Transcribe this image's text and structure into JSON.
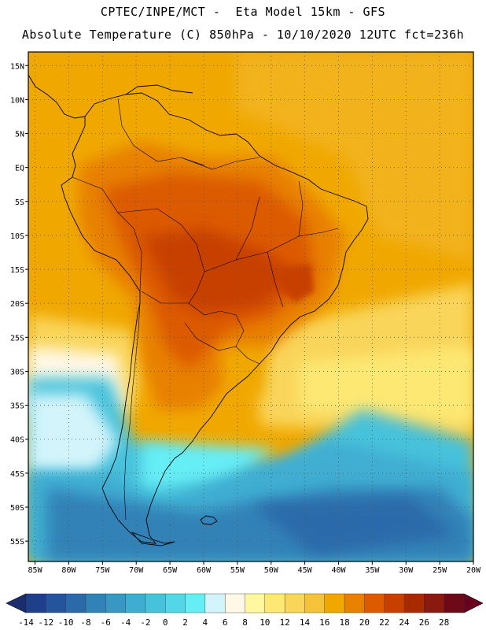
{
  "header": {
    "line1": "CPTEC/INPE/MCT -  Eta Model 15km - GFS",
    "line2": "Absolute Temperature (C) 850hPa - 10/10/2020 12UTC fct=236h"
  },
  "map": {
    "lon_range": [
      -86,
      -20
    ],
    "lat_range": [
      -58,
      17
    ],
    "lat_ticks": [
      "15N",
      "10N",
      "5N",
      "EQ",
      "5S",
      "10S",
      "15S",
      "20S",
      "25S",
      "30S",
      "35S",
      "40S",
      "45S",
      "50S",
      "55S"
    ],
    "lat_values": [
      15,
      10,
      5,
      0,
      -5,
      -10,
      -15,
      -20,
      -25,
      -30,
      -35,
      -40,
      -45,
      -50,
      -55
    ],
    "lon_ticks": [
      "85W",
      "80W",
      "75W",
      "70W",
      "65W",
      "60W",
      "55W",
      "50W",
      "45W",
      "40W",
      "35W",
      "30W",
      "25W",
      "20W"
    ],
    "lon_values": [
      -85,
      -80,
      -75,
      -70,
      -65,
      -60,
      -55,
      -50,
      -45,
      -40,
      -35,
      -30,
      -25,
      -20
    ]
  },
  "colorbar": {
    "labels": [
      "-14",
      "-12",
      "-10",
      "-8",
      "-6",
      "-4",
      "-2",
      "0",
      "2",
      "4",
      "6",
      "8",
      "10",
      "12",
      "14",
      "16",
      "18",
      "20",
      "22",
      "24",
      "26",
      "28"
    ],
    "colors": [
      "#1e3f8c",
      "#23549c",
      "#2a6aaa",
      "#3182b8",
      "#3897c4",
      "#3fadd1",
      "#47c2dc",
      "#52d6e8",
      "#66eef6",
      "#d3f4fb",
      "#fff8e6",
      "#fff8a0",
      "#fde873",
      "#f9d55a",
      "#f5c23a",
      "#f0a800",
      "#e88000",
      "#dc5a00",
      "#c84000",
      "#aa2a00",
      "#8a1a10",
      "#6e0a18"
    ],
    "low_color": "#1a2d6e",
    "high_color": "#6a0020"
  }
}
